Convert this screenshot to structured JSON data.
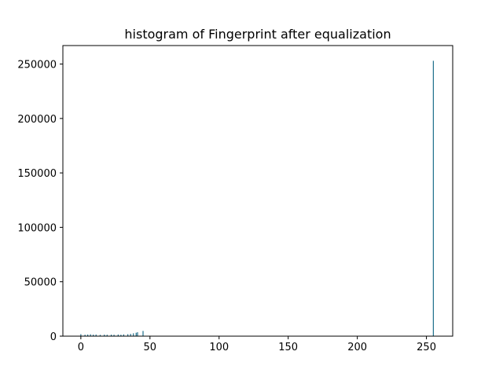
{
  "chart_data": {
    "type": "bar",
    "title": "histogram of Fingerprint   after equalization",
    "xlabel": "",
    "ylabel": "",
    "xlim": [
      -13,
      269
    ],
    "ylim": [
      0,
      267000
    ],
    "xticks": [
      0,
      50,
      100,
      150,
      200,
      250
    ],
    "yticks": [
      0,
      50000,
      100000,
      150000,
      200000,
      250000
    ],
    "x": [
      0,
      3,
      5,
      7,
      9,
      11,
      14,
      17,
      19,
      22,
      24,
      27,
      29,
      31,
      34,
      36,
      38,
      40,
      41,
      45,
      255
    ],
    "values": [
      1800,
      1300,
      1500,
      1700,
      1400,
      1500,
      1200,
      1400,
      1300,
      1400,
      1300,
      1500,
      1300,
      1600,
      1800,
      2100,
      2600,
      3100,
      3600,
      4800,
      253000
    ],
    "bar_color": "#1f6f8b",
    "grid": false
  }
}
